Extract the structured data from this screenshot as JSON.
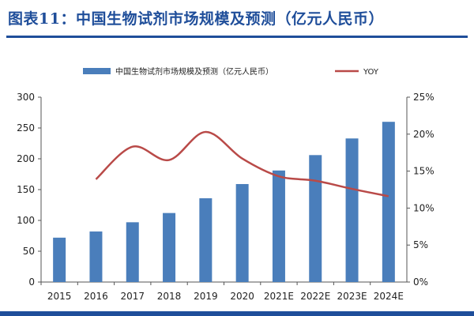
{
  "title": "图表11：中国生物试剂市场规模及预测（亿元人民币）",
  "colors": {
    "bar": "#4a7ebb",
    "line": "#b94a48",
    "title": "#1f4e9a"
  },
  "chart_data": {
    "type": "bar",
    "categories": [
      "2015",
      "2016",
      "2017",
      "2018",
      "2019",
      "2020",
      "2021E",
      "2022E",
      "2023E",
      "2024E"
    ],
    "series": [
      {
        "name": "中国生物试剂市场规模及预测（亿元人民币）",
        "type": "bar",
        "axis": "left",
        "values": [
          72,
          82,
          97,
          112,
          136,
          159,
          181,
          206,
          233,
          260
        ]
      },
      {
        "name": "YOY",
        "type": "line",
        "axis": "right",
        "values": [
          null,
          0.139,
          0.183,
          0.165,
          0.203,
          0.167,
          0.143,
          0.137,
          0.126,
          0.116
        ]
      }
    ],
    "yleft": {
      "min": 0,
      "max": 300,
      "ticks": [
        "0",
        "50",
        "100",
        "150",
        "200",
        "250",
        "300"
      ]
    },
    "yright": {
      "min": 0,
      "max": 0.25,
      "ticks": [
        "0%",
        "5%",
        "10%",
        "15%",
        "20%",
        "25%"
      ]
    },
    "legend": "top",
    "grid": false
  }
}
